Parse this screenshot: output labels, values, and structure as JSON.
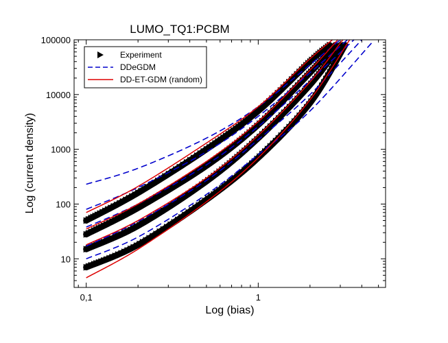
{
  "chart_data": {
    "type": "line",
    "title": "LUMO_TQ1:PCBM",
    "xlabel": "Log (bias)",
    "ylabel": "Log (current density)",
    "x_scale": "log",
    "y_scale": "log",
    "xlim": [
      0.085,
      5.5
    ],
    "ylim": [
      3,
      100000
    ],
    "x_ticks": [
      {
        "value": 0.1,
        "label": "0,1"
      },
      {
        "value": 1,
        "label": "1"
      }
    ],
    "y_ticks": [
      {
        "value": 10,
        "label": "10"
      },
      {
        "value": 100,
        "label": "100"
      },
      {
        "value": 1000,
        "label": "1000"
      },
      {
        "value": 10000,
        "label": "10000"
      },
      {
        "value": 100000,
        "label": "100000"
      }
    ],
    "grid": false,
    "legend": {
      "position": "top-left",
      "entries": [
        {
          "label": "Experiment",
          "style": "black-triangle-markers"
        },
        {
          "label": "DDeGDM",
          "style": "blue-dashed"
        },
        {
          "label": "DD-ET-GDM (random)",
          "style": "red-solid"
        }
      ]
    },
    "colors": {
      "experiment": "#000000",
      "ddegdm": "#0000cc",
      "ddetgdm": "#dd0000"
    },
    "series": [
      {
        "name": "Experiment",
        "curves": [
          {
            "x": [
              0.1,
              0.2,
              0.5,
              1,
              2,
              2.6
            ],
            "y": [
              50,
              160,
              1000,
              5000,
              40000,
              80000
            ]
          },
          {
            "x": [
              0.1,
              0.2,
              0.5,
              1,
              2,
              2.8
            ],
            "y": [
              28,
              85,
              500,
              2800,
              25000,
              80000
            ]
          },
          {
            "x": [
              0.1,
              0.2,
              0.5,
              1,
              2,
              3.0
            ],
            "y": [
              15,
              40,
              260,
              1600,
              15000,
              80000
            ]
          },
          {
            "x": [
              0.1,
              0.2,
              0.5,
              1,
              2,
              3.2
            ],
            "y": [
              7,
              18,
              120,
              700,
              7000,
              80000
            ]
          }
        ]
      },
      {
        "name": "DDeGDM",
        "curves": [
          {
            "x": [
              0.1,
              0.2,
              0.5,
              1,
              2,
              3.0
            ],
            "y": [
              230,
              450,
              1600,
              6000,
              35000,
              100000
            ]
          },
          {
            "x": [
              0.1,
              0.2,
              0.5,
              1,
              2,
              3.3
            ],
            "y": [
              80,
              200,
              900,
              4000,
              25000,
              100000
            ]
          },
          {
            "x": [
              0.1,
              0.2,
              0.5,
              1,
              2,
              3.6
            ],
            "y": [
              38,
              100,
              520,
              2600,
              18000,
              100000
            ]
          },
          {
            "x": [
              0.1,
              0.2,
              0.5,
              1,
              2,
              4.0
            ],
            "y": [
              17,
              48,
              270,
              1500,
              10000,
              100000
            ]
          },
          {
            "x": [
              0.1,
              0.2,
              0.5,
              1,
              2,
              4.6
            ],
            "y": [
              10,
              25,
              150,
              800,
              5000,
              90000
            ]
          }
        ]
      },
      {
        "name": "DD-ET-GDM (random)",
        "curves": [
          {
            "x": [
              0.1,
              0.2,
              0.5,
              1,
              2,
              2.7
            ],
            "y": [
              70,
              210,
              1300,
              6000,
              45000,
              100000
            ]
          },
          {
            "x": [
              0.1,
              0.2,
              0.5,
              1,
              2,
              2.9
            ],
            "y": [
              35,
              100,
              600,
              3200,
              28000,
              100000
            ]
          },
          {
            "x": [
              0.1,
              0.2,
              0.5,
              1,
              2,
              3.1
            ],
            "y": [
              18,
              50,
              300,
              1800,
              17000,
              100000
            ]
          },
          {
            "x": [
              0.1,
              0.2,
              0.5,
              1,
              2,
              3.4
            ],
            "y": [
              4.5,
              15,
              110,
              700,
              8000,
              100000
            ]
          }
        ]
      }
    ]
  }
}
